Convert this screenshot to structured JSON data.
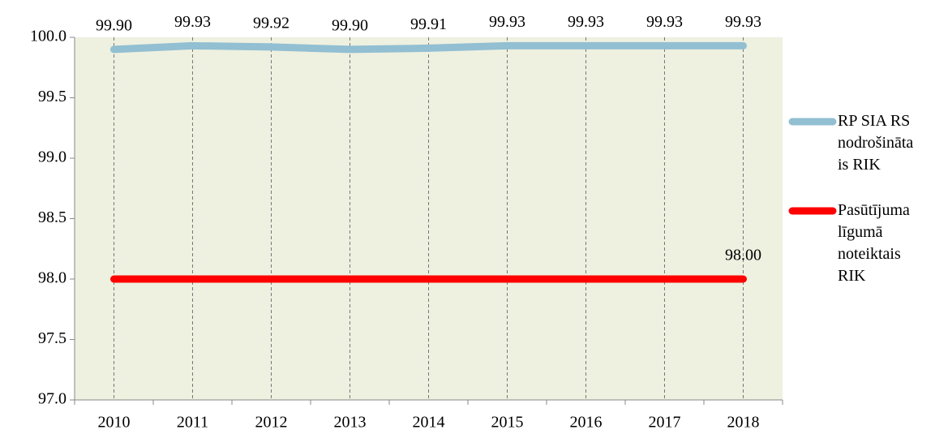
{
  "chart_data": {
    "type": "line",
    "categories": [
      "2010",
      "2011",
      "2012",
      "2013",
      "2014",
      "2015",
      "2016",
      "2017",
      "2018"
    ],
    "series": [
      {
        "name": "RP SIA RS nodrošinātais RIK",
        "color": "#92bfd2",
        "values": [
          99.9,
          99.93,
          99.92,
          99.9,
          99.91,
          99.93,
          99.93,
          99.93,
          99.93
        ],
        "value_labels": [
          "99.90",
          "99.93",
          "99.92",
          "99.90",
          "99.91",
          "99.93",
          "99.93",
          "99.93",
          "99.93"
        ]
      },
      {
        "name": "Pasūtījuma līgumā noteiktais RIK",
        "color": "#ff0000",
        "values": [
          98,
          98,
          98,
          98,
          98,
          98,
          98,
          98,
          98
        ],
        "value_labels": [
          null,
          null,
          null,
          null,
          null,
          null,
          null,
          null,
          "98.00"
        ]
      }
    ],
    "ylim": [
      97,
      100
    ],
    "yticks": [
      {
        "value": 97,
        "label": "97.0"
      },
      {
        "value": 97.5,
        "label": "97.5"
      },
      {
        "value": 98,
        "label": "98.0"
      },
      {
        "value": 98.5,
        "label": "98.5"
      },
      {
        "value": 99,
        "label": "99.0"
      },
      {
        "value": 99.5,
        "label": "99.5"
      },
      {
        "value": 100,
        "label": "100.0"
      }
    ],
    "grid": true,
    "legend": "right"
  }
}
